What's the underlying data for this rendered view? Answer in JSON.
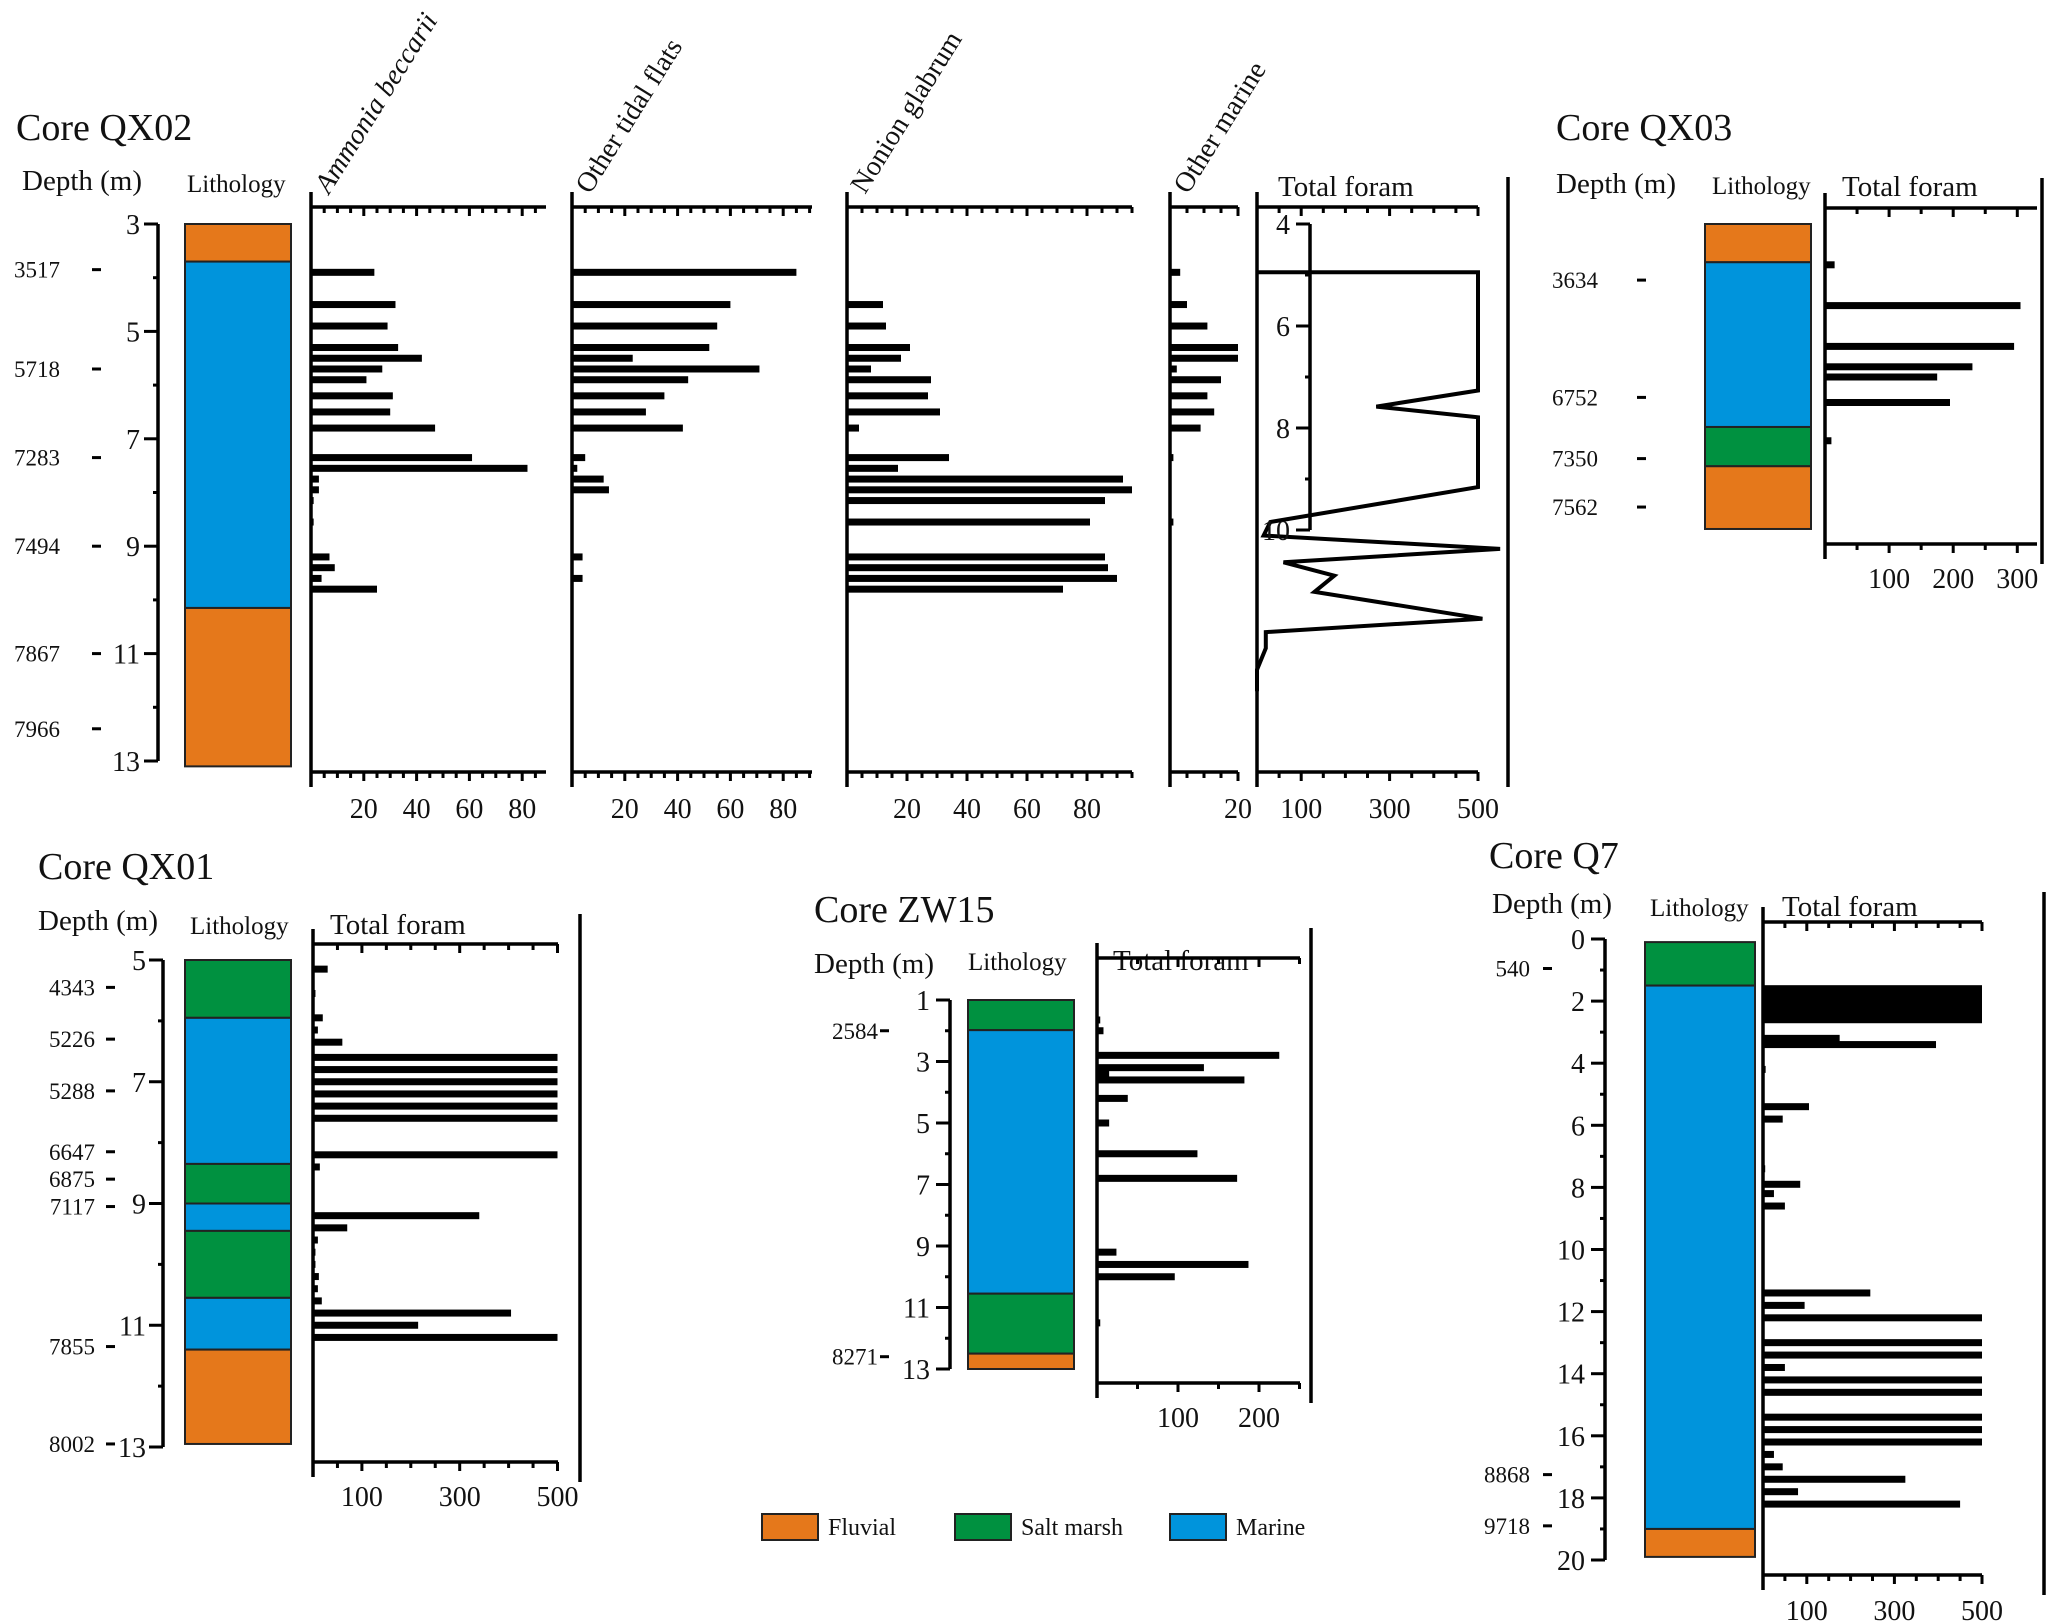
{
  "figure": {
    "legend": [
      {
        "key": "fluvial",
        "label": "Fluvial",
        "color": "#E5781B"
      },
      {
        "key": "saltmarsh",
        "label": "Salt marsh",
        "color": "#009140"
      },
      {
        "key": "marine",
        "label": "Marine",
        "color": "#0094DC"
      }
    ],
    "common_labels": {
      "depth": "Depth (m)",
      "lithology": "Lithology",
      "total_foram": "Total foram"
    }
  },
  "chart_data": [
    {
      "type": "bar",
      "id": "qx02",
      "title": "Core QX02",
      "orientation": "horizontal-stratigraphic",
      "depth_axis": {
        "label": "Depth (m)",
        "range": [
          3,
          13
        ],
        "ticks": [
          3,
          5,
          7,
          9,
          11,
          13
        ],
        "minor_step": 1
      },
      "age_labels": [
        {
          "age": "3517",
          "depth": 3.85
        },
        {
          "age": "5718",
          "depth": 5.7
        },
        {
          "age": "7283",
          "depth": 7.35
        },
        {
          "age": "7494",
          "depth": 9.0
        },
        {
          "age": "7867",
          "depth": 11.0
        },
        {
          "age": "7966",
          "depth": 12.4
        }
      ],
      "lithology": [
        {
          "from": 3.0,
          "to": 3.7,
          "facies": "fluvial"
        },
        {
          "from": 3.7,
          "to": 10.15,
          "facies": "marine"
        },
        {
          "from": 10.15,
          "to": 13.1,
          "facies": "fluvial"
        }
      ],
      "depths": [
        3.9,
        4.5,
        4.9,
        5.3,
        5.5,
        5.7,
        5.9,
        6.2,
        6.5,
        6.8,
        7.35,
        7.55,
        7.75,
        7.95,
        8.15,
        8.55,
        9.2,
        9.4,
        9.6,
        9.8
      ],
      "series": [
        {
          "name": "Ammonia beccarii",
          "italic": true,
          "xlim": [
            0,
            90
          ],
          "ticks": [
            20,
            40,
            60,
            80
          ],
          "values": [
            24,
            32,
            29,
            33,
            42,
            27,
            21,
            31,
            30,
            47,
            61,
            82,
            3,
            3,
            1,
            1,
            7,
            9,
            4,
            25
          ]
        },
        {
          "name": "Other tidal flats",
          "italic": false,
          "xlim": [
            0,
            90
          ],
          "ticks": [
            20,
            40,
            60,
            80
          ],
          "values": [
            85,
            60,
            55,
            52,
            23,
            71,
            44,
            35,
            28,
            42,
            5,
            2,
            12,
            14,
            0,
            0,
            4,
            0,
            4,
            0
          ]
        },
        {
          "name": "Nonion glabrum",
          "italic": false,
          "xlim": [
            0,
            95
          ],
          "ticks": [
            20,
            40,
            60,
            80
          ],
          "values": [
            0,
            12,
            13,
            21,
            18,
            8,
            28,
            27,
            31,
            4,
            34,
            17,
            92,
            95,
            86,
            81,
            86,
            87,
            90,
            72
          ]
        },
        {
          "name": "Other marine",
          "italic": false,
          "xlim": [
            0,
            20
          ],
          "ticks": [
            20
          ],
          "values": [
            3,
            5,
            11,
            20,
            20,
            2,
            15,
            11,
            13,
            9,
            1,
            0,
            0,
            0,
            0,
            1,
            0,
            0,
            0,
            0
          ]
        }
      ],
      "total_foram_line": {
        "name": "Total foram",
        "xlim": [
          0,
          500
        ],
        "ticks": [
          100,
          300,
          500
        ],
        "points": [
          [
            0,
            3.9
          ],
          [
            500,
            3.9
          ],
          [
            500,
            6.1
          ],
          [
            270,
            6.4
          ],
          [
            500,
            6.6
          ],
          [
            500,
            7.9
          ],
          [
            30,
            8.55
          ],
          [
            15,
            8.8
          ],
          [
            550,
            9.05
          ],
          [
            60,
            9.3
          ],
          [
            175,
            9.55
          ],
          [
            130,
            9.85
          ],
          [
            510,
            10.35
          ],
          [
            20,
            10.6
          ],
          [
            20,
            10.9
          ],
          [
            0,
            11.3
          ],
          [
            0,
            11.7
          ]
        ]
      }
    },
    {
      "type": "bar",
      "id": "qx03",
      "title": "Core QX03",
      "depth_axis": {
        "label": "Depth (m)",
        "range": [
          4,
          10
        ],
        "ticks": [
          4,
          6,
          8,
          10
        ],
        "minor_step": 1
      },
      "age_labels": [
        {
          "age": "3634",
          "depth": 5.1
        },
        {
          "age": "6752",
          "depth": 7.4
        },
        {
          "age": "7350",
          "depth": 8.6
        },
        {
          "age": "7562",
          "depth": 9.55
        }
      ],
      "lithology": [
        {
          "from": 4.0,
          "to": 4.75,
          "facies": "fluvial"
        },
        {
          "from": 4.75,
          "to": 7.98,
          "facies": "marine"
        },
        {
          "from": 7.98,
          "to": 8.75,
          "facies": "saltmarsh"
        },
        {
          "from": 8.75,
          "to": 9.98,
          "facies": "fluvial"
        }
      ],
      "total_foram": {
        "xlim": [
          0,
          330
        ],
        "ticks": [
          100,
          200,
          300
        ],
        "depths": [
          4.8,
          5.6,
          6.4,
          6.8,
          7.0,
          7.5,
          8.25
        ],
        "values": [
          15,
          305,
          295,
          230,
          175,
          195,
          10
        ]
      }
    },
    {
      "type": "bar",
      "id": "qx01",
      "title": "Core QX01",
      "depth_axis": {
        "label": "Depth (m)",
        "range": [
          5,
          13
        ],
        "ticks": [
          5,
          7,
          9,
          11,
          13
        ],
        "minor_step": 1
      },
      "age_labels": [
        {
          "age": "4343",
          "depth": 5.45
        },
        {
          "age": "5226",
          "depth": 6.3
        },
        {
          "age": "5288",
          "depth": 7.15
        },
        {
          "age": "6647",
          "depth": 8.15
        },
        {
          "age": "6875",
          "depth": 8.6
        },
        {
          "age": "7117",
          "depth": 9.05
        },
        {
          "age": "7855",
          "depth": 11.35
        },
        {
          "age": "8002",
          "depth": 12.95
        }
      ],
      "lithology": [
        {
          "from": 5.0,
          "to": 5.95,
          "facies": "saltmarsh"
        },
        {
          "from": 5.95,
          "to": 8.35,
          "facies": "marine"
        },
        {
          "from": 8.35,
          "to": 9.0,
          "facies": "saltmarsh"
        },
        {
          "from": 9.0,
          "to": 9.45,
          "facies": "marine"
        },
        {
          "from": 9.45,
          "to": 10.55,
          "facies": "saltmarsh"
        },
        {
          "from": 10.55,
          "to": 11.4,
          "facies": "marine"
        },
        {
          "from": 11.4,
          "to": 12.95,
          "facies": "fluvial"
        }
      ],
      "total_foram": {
        "xlim": [
          0,
          500
        ],
        "ticks": [
          100,
          300,
          500
        ],
        "depths": [
          5.15,
          5.55,
          5.95,
          6.15,
          6.35,
          6.6,
          6.8,
          7.0,
          7.2,
          7.4,
          7.6,
          7.8,
          8.2,
          8.4,
          9.2,
          9.4,
          9.6,
          9.8,
          10.0,
          10.2,
          10.4,
          10.6,
          10.8,
          11.0,
          11.2,
          12.5,
          12.7
        ],
        "values": [
          30,
          5,
          20,
          10,
          60,
          500,
          500,
          500,
          500,
          500,
          500,
          2,
          500,
          14,
          340,
          70,
          10,
          5,
          5,
          12,
          10,
          18,
          405,
          215,
          500,
          3,
          3
        ]
      }
    },
    {
      "type": "bar",
      "id": "zw15",
      "title": "Core ZW15",
      "depth_axis": {
        "label": "Depth (m)",
        "range": [
          1,
          13
        ],
        "ticks": [
          1,
          3,
          5,
          7,
          9,
          11,
          13
        ],
        "minor_step": 1
      },
      "age_labels": [
        {
          "age": "2584",
          "depth": 2.0
        },
        {
          "age": "8271",
          "depth": 12.6
        }
      ],
      "lithology": [
        {
          "from": 1.0,
          "to": 1.98,
          "facies": "saltmarsh"
        },
        {
          "from": 1.98,
          "to": 10.55,
          "facies": "marine"
        },
        {
          "from": 10.55,
          "to": 12.5,
          "facies": "saltmarsh"
        },
        {
          "from": 12.5,
          "to": 13.0,
          "facies": "fluvial"
        }
      ],
      "total_foram": {
        "xlim": [
          0,
          250
        ],
        "ticks": [
          100,
          200
        ],
        "depths": [
          1.65,
          2.0,
          2.8,
          3.2,
          3.4,
          3.6,
          4.2,
          5.0,
          6.0,
          6.8,
          9.2,
          9.6,
          10.0,
          11.5
        ],
        "values": [
          4,
          8,
          225,
          132,
          15,
          182,
          38,
          15,
          124,
          173,
          24,
          187,
          96,
          4
        ]
      }
    },
    {
      "type": "bar",
      "id": "q7",
      "title": "Core Q7",
      "depth_axis": {
        "label": "Depth (m)",
        "range": [
          0,
          20
        ],
        "ticks": [
          0,
          2,
          4,
          6,
          8,
          10,
          12,
          14,
          16,
          18,
          20
        ],
        "minor_step": 1
      },
      "age_labels": [
        {
          "age": "540",
          "depth": 0.95
        },
        {
          "age": "8868",
          "depth": 17.25
        },
        {
          "age": "9718",
          "depth": 18.9
        }
      ],
      "lithology": [
        {
          "from": 0.1,
          "to": 1.5,
          "facies": "saltmarsh"
        },
        {
          "from": 1.5,
          "to": 19.0,
          "facies": "marine"
        },
        {
          "from": 19.0,
          "to": 19.9,
          "facies": "fluvial"
        }
      ],
      "total_foram": {
        "xlim": [
          0,
          500
        ],
        "ticks": [
          100,
          300,
          500
        ],
        "depths": [
          1.6,
          1.8,
          2.0,
          2.2,
          2.4,
          2.6,
          3.2,
          3.4,
          4.2,
          4.5,
          5.4,
          5.8,
          7.2,
          7.4,
          7.9,
          8.2,
          8.6,
          11.4,
          11.8,
          12.2,
          13.0,
          13.4,
          13.8,
          14.2,
          14.6,
          15.4,
          15.8,
          16.2,
          16.6,
          17.0,
          17.4,
          17.8,
          18.2,
          18.6
        ],
        "values": [
          500,
          500,
          500,
          500,
          500,
          500,
          175,
          395,
          6,
          3,
          105,
          45,
          3,
          5,
          85,
          25,
          50,
          245,
          95,
          500,
          500,
          500,
          50,
          500,
          500,
          500,
          500,
          500,
          25,
          45,
          325,
          80,
          450,
          3
        ]
      }
    }
  ]
}
